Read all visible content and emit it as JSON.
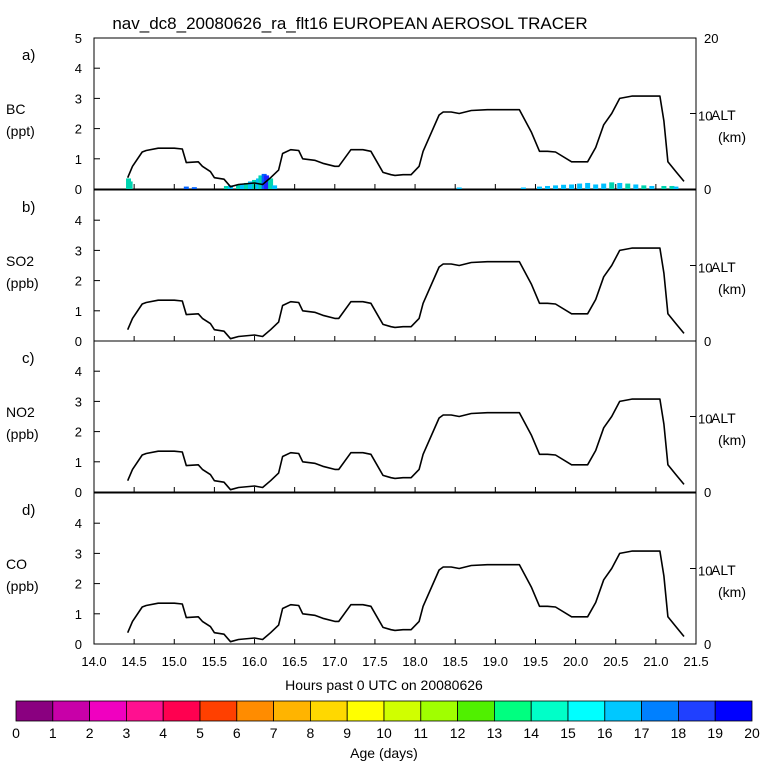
{
  "chart_data": {
    "type": "line",
    "title": "nav_dc8_20080626_ra_flt16 EUROPEAN AEROSOL TRACER",
    "xlabel": "Hours past 0 UTC on 20080626",
    "xlim": [
      14.0,
      21.5
    ],
    "xticks": [
      "14.0",
      "14.5",
      "15.0",
      "15.5",
      "16.0",
      "16.5",
      "17.0",
      "17.5",
      "18.0",
      "18.5",
      "19.0",
      "19.5",
      "20.0",
      "20.5",
      "21.0",
      "21.5"
    ],
    "right_axis": {
      "label": "ALT",
      "unit": "(km)",
      "ylim": [
        0,
        20
      ],
      "ticks": [
        "0",
        "10"
      ],
      "top_label": "20"
    },
    "altitude_series": {
      "name": "ALT (km)",
      "x": [
        14.42,
        14.48,
        14.6,
        14.65,
        14.8,
        15.0,
        15.1,
        15.15,
        15.3,
        15.35,
        15.45,
        15.5,
        15.62,
        15.7,
        15.8,
        16.0,
        16.1,
        16.2,
        16.3,
        16.35,
        16.45,
        16.55,
        16.6,
        16.75,
        16.85,
        17.0,
        17.05,
        17.2,
        17.35,
        17.45,
        17.6,
        17.7,
        17.75,
        17.85,
        17.95,
        18.05,
        18.1,
        18.3,
        18.35,
        18.45,
        18.55,
        18.7,
        18.9,
        19.1,
        19.3,
        19.45,
        19.55,
        19.65,
        19.75,
        19.95,
        20.05,
        20.15,
        20.25,
        20.35,
        20.45,
        20.55,
        20.7,
        20.9,
        21.05,
        21.1,
        21.15,
        21.25,
        21.35
      ],
      "y": [
        1.5,
        3.0,
        4.9,
        5.1,
        5.4,
        5.4,
        5.3,
        3.5,
        3.6,
        3.0,
        2.3,
        1.5,
        1.3,
        0.3,
        0.6,
        0.8,
        0.6,
        1.5,
        2.5,
        4.7,
        5.2,
        5.1,
        4.0,
        3.8,
        3.4,
        3.0,
        3.0,
        5.2,
        5.2,
        5.0,
        2.2,
        1.9,
        1.8,
        1.9,
        1.9,
        3.0,
        5.0,
        9.8,
        10.2,
        10.2,
        10.0,
        10.4,
        10.5,
        10.5,
        10.5,
        7.5,
        5.0,
        5.0,
        4.9,
        3.6,
        3.6,
        3.6,
        5.5,
        8.5,
        10.0,
        12.0,
        12.3,
        12.3,
        12.3,
        9.0,
        3.6,
        2.3,
        1.0
      ]
    },
    "panels": [
      {
        "label": "a)",
        "species": "BC",
        "unit": "(ppt)",
        "ylim": [
          0,
          5
        ],
        "yticks": [
          "0",
          "1",
          "2",
          "3",
          "4",
          "5"
        ],
        "tracer_bars": [
          {
            "x": 14.43,
            "value": 0.35,
            "color": "#00d4b0"
          },
          {
            "x": 14.45,
            "value": 0.25,
            "color": "#00d4b0"
          },
          {
            "x": 15.15,
            "value": 0.08,
            "color": "#0060ff"
          },
          {
            "x": 15.25,
            "value": 0.06,
            "color": "#0060ff"
          },
          {
            "x": 15.65,
            "value": 0.1,
            "color": "#00d4b0"
          },
          {
            "x": 15.7,
            "value": 0.12,
            "color": "#00c0ff"
          },
          {
            "x": 15.8,
            "value": 0.15,
            "color": "#00d4b0"
          },
          {
            "x": 15.85,
            "value": 0.18,
            "color": "#00c0ff"
          },
          {
            "x": 15.9,
            "value": 0.2,
            "color": "#00d4b0"
          },
          {
            "x": 15.95,
            "value": 0.25,
            "color": "#00c0ff"
          },
          {
            "x": 16.0,
            "value": 0.3,
            "color": "#00d4b0"
          },
          {
            "x": 16.05,
            "value": 0.35,
            "color": "#00c0ff"
          },
          {
            "x": 16.08,
            "value": 0.45,
            "color": "#00d4b0"
          },
          {
            "x": 16.12,
            "value": 0.5,
            "color": "#0060ff"
          },
          {
            "x": 16.15,
            "value": 0.45,
            "color": "#2020ff"
          },
          {
            "x": 16.2,
            "value": 0.35,
            "color": "#00d4b0"
          },
          {
            "x": 16.25,
            "value": 0.12,
            "color": "#00c0ff"
          },
          {
            "x": 18.55,
            "value": 0.05,
            "color": "#00c0ff"
          },
          {
            "x": 19.35,
            "value": 0.05,
            "color": "#00c0ff"
          },
          {
            "x": 19.55,
            "value": 0.08,
            "color": "#00c0ff"
          },
          {
            "x": 19.65,
            "value": 0.1,
            "color": "#00c0ff"
          },
          {
            "x": 19.75,
            "value": 0.12,
            "color": "#00c0ff"
          },
          {
            "x": 19.85,
            "value": 0.14,
            "color": "#00c0ff"
          },
          {
            "x": 19.95,
            "value": 0.15,
            "color": "#00c0ff"
          },
          {
            "x": 20.05,
            "value": 0.18,
            "color": "#00c0ff"
          },
          {
            "x": 20.15,
            "value": 0.2,
            "color": "#00c0ff"
          },
          {
            "x": 20.25,
            "value": 0.15,
            "color": "#00c0ff"
          },
          {
            "x": 20.35,
            "value": 0.18,
            "color": "#00c0ff"
          },
          {
            "x": 20.45,
            "value": 0.22,
            "color": "#00d4b0"
          },
          {
            "x": 20.55,
            "value": 0.2,
            "color": "#00c0ff"
          },
          {
            "x": 20.65,
            "value": 0.18,
            "color": "#00d4b0"
          },
          {
            "x": 20.75,
            "value": 0.15,
            "color": "#00c0ff"
          },
          {
            "x": 20.85,
            "value": 0.12,
            "color": "#00d4b0"
          },
          {
            "x": 20.95,
            "value": 0.1,
            "color": "#00c0ff"
          },
          {
            "x": 21.1,
            "value": 0.1,
            "color": "#00d4b0"
          },
          {
            "x": 21.2,
            "value": 0.1,
            "color": "#00d4b0"
          },
          {
            "x": 21.25,
            "value": 0.08,
            "color": "#00c0ff"
          }
        ]
      },
      {
        "label": "b)",
        "species": "SO2",
        "unit": "(ppb)",
        "ylim": [
          0,
          5
        ],
        "yticks": [
          "0",
          "1",
          "2",
          "3",
          "4"
        ],
        "tracer_bars": []
      },
      {
        "label": "c)",
        "species": "NO2",
        "unit": "(ppb)",
        "ylim": [
          0,
          5
        ],
        "yticks": [
          "0",
          "1",
          "2",
          "3",
          "4"
        ],
        "tracer_bars": []
      },
      {
        "label": "d)",
        "species": "CO",
        "unit": "(ppb)",
        "ylim": [
          0,
          5
        ],
        "yticks": [
          "0",
          "1",
          "2",
          "3",
          "4"
        ],
        "tracer_bars": []
      }
    ],
    "colorbar": {
      "label": "Age (days)",
      "ticks": [
        "0",
        "1",
        "2",
        "3",
        "4",
        "5",
        "6",
        "7",
        "8",
        "9",
        "10",
        "11",
        "12",
        "13",
        "14",
        "15",
        "16",
        "17",
        "18",
        "19",
        "20"
      ],
      "colors": [
        "#8a0080",
        "#c800a8",
        "#f000c0",
        "#ff1090",
        "#ff0050",
        "#ff4000",
        "#ff8c00",
        "#ffb400",
        "#ffd800",
        "#ffff00",
        "#d0ff00",
        "#a0ff00",
        "#50f000",
        "#00ff80",
        "#00ffc8",
        "#00ffff",
        "#00c8ff",
        "#0080ff",
        "#2040ff",
        "#0000ff"
      ]
    }
  }
}
